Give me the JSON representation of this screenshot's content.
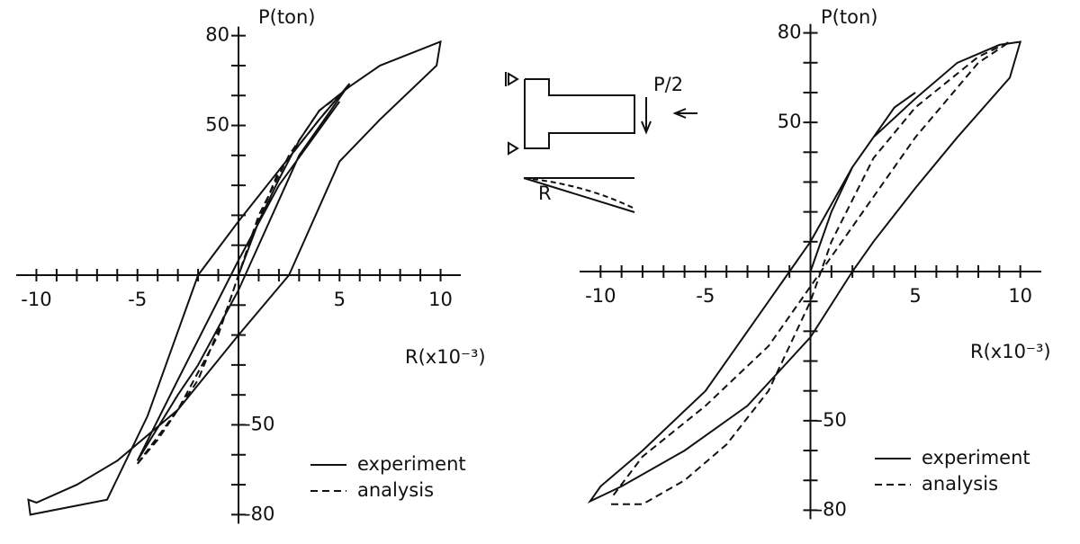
{
  "chart_data": [
    {
      "type": "line",
      "xlabel": "R(x10⁻³)",
      "ylabel": "P(ton)",
      "xlim": [
        -11,
        11
      ],
      "ylim": [
        -85,
        85
      ],
      "xticks": [
        -10,
        -5,
        5,
        10
      ],
      "yticks": [
        80,
        50,
        -50,
        -80
      ],
      "xminorticks": [
        -10,
        -9,
        -8,
        -7,
        -6,
        -5,
        -4,
        -3,
        -2,
        -1,
        1,
        2,
        3,
        4,
        5,
        6,
        7,
        8,
        9,
        10
      ],
      "yminorticks": [
        -80,
        -70,
        -60,
        -50,
        -40,
        -30,
        -20,
        -10,
        10,
        20,
        30,
        40,
        50,
        60,
        70,
        80
      ],
      "legend": "lower right",
      "series": [
        {
          "name": "experiment",
          "color": "#111111",
          "style": "solid",
          "x": [
            0,
            1,
            2,
            3,
            4,
            5.5,
            7,
            10,
            9.8,
            7,
            5,
            2.5,
            0,
            -3,
            -6,
            -8,
            -10,
            -10.4,
            -10.3,
            -6.5,
            -4.5,
            -2,
            0,
            2,
            4,
            5.5,
            3,
            0,
            -2,
            -3,
            -5,
            -3,
            0,
            2,
            5
          ],
          "values": [
            0,
            18,
            32,
            45,
            55,
            63,
            70,
            78,
            70,
            52,
            38,
            0,
            -20,
            -45,
            -62,
            -70,
            -76,
            -75,
            -80,
            -75,
            -47,
            0,
            18,
            35,
            52,
            64,
            40,
            -5,
            -30,
            -40,
            -62,
            -35,
            5,
            30,
            58
          ]
        },
        {
          "name": "analysis",
          "color": "#111111",
          "style": "dashed",
          "x": [
            -5,
            -3,
            -1,
            0,
            1,
            2.5,
            4,
            5,
            4,
            2,
            0.5,
            -0.5,
            -2,
            -4,
            -5
          ],
          "values": [
            -63,
            -45,
            -20,
            0,
            20,
            40,
            55,
            60,
            52,
            35,
            10,
            -10,
            -35,
            -55,
            -63
          ]
        }
      ]
    },
    {
      "type": "line",
      "xlabel": "R(x10⁻³)",
      "ylabel": "P(ton)",
      "xlim": [
        -11,
        11
      ],
      "ylim": [
        -85,
        85
      ],
      "xticks": [
        -10,
        -5,
        5,
        10
      ],
      "yticks": [
        80,
        50,
        -50,
        -80
      ],
      "xminorticks": [
        -10,
        -9,
        -8,
        -7,
        -6,
        -5,
        -4,
        -3,
        -2,
        -1,
        1,
        2,
        3,
        4,
        5,
        6,
        7,
        8,
        9,
        10
      ],
      "yminorticks": [
        -80,
        -70,
        -60,
        -50,
        -40,
        -30,
        -20,
        -10,
        10,
        20,
        30,
        40,
        50,
        60,
        70,
        80
      ],
      "legend": "lower right",
      "series": [
        {
          "name": "experiment",
          "color": "#111111",
          "style": "solid",
          "x": [
            0,
            1,
            2,
            3,
            5,
            7,
            9,
            10,
            9.5,
            7,
            5,
            3,
            2,
            0,
            -3,
            -6,
            -9,
            -10.5,
            -10,
            -8,
            -5,
            -2,
            -1,
            0,
            2,
            4,
            5
          ],
          "values": [
            0,
            20,
            35,
            45,
            58,
            70,
            76,
            77,
            65,
            45,
            28,
            10,
            0,
            -22,
            -45,
            -60,
            -72,
            -77,
            -72,
            -60,
            -40,
            -10,
            0,
            10,
            35,
            55,
            60
          ]
        },
        {
          "name": "analysis",
          "color": "#111111",
          "style": "dashed",
          "x": [
            -9.5,
            -8,
            -6,
            -4,
            -2,
            0,
            1,
            3,
            5,
            8,
            9.5,
            8,
            5,
            2,
            0,
            -2,
            -5,
            -8,
            -9.5
          ],
          "values": [
            -78,
            -78,
            -70,
            -58,
            -40,
            -10,
            10,
            38,
            55,
            72,
            77,
            70,
            45,
            15,
            -5,
            -25,
            -45,
            -62,
            -76
          ]
        }
      ]
    }
  ],
  "diagram": {
    "labels": [
      "P/2",
      "R"
    ]
  }
}
